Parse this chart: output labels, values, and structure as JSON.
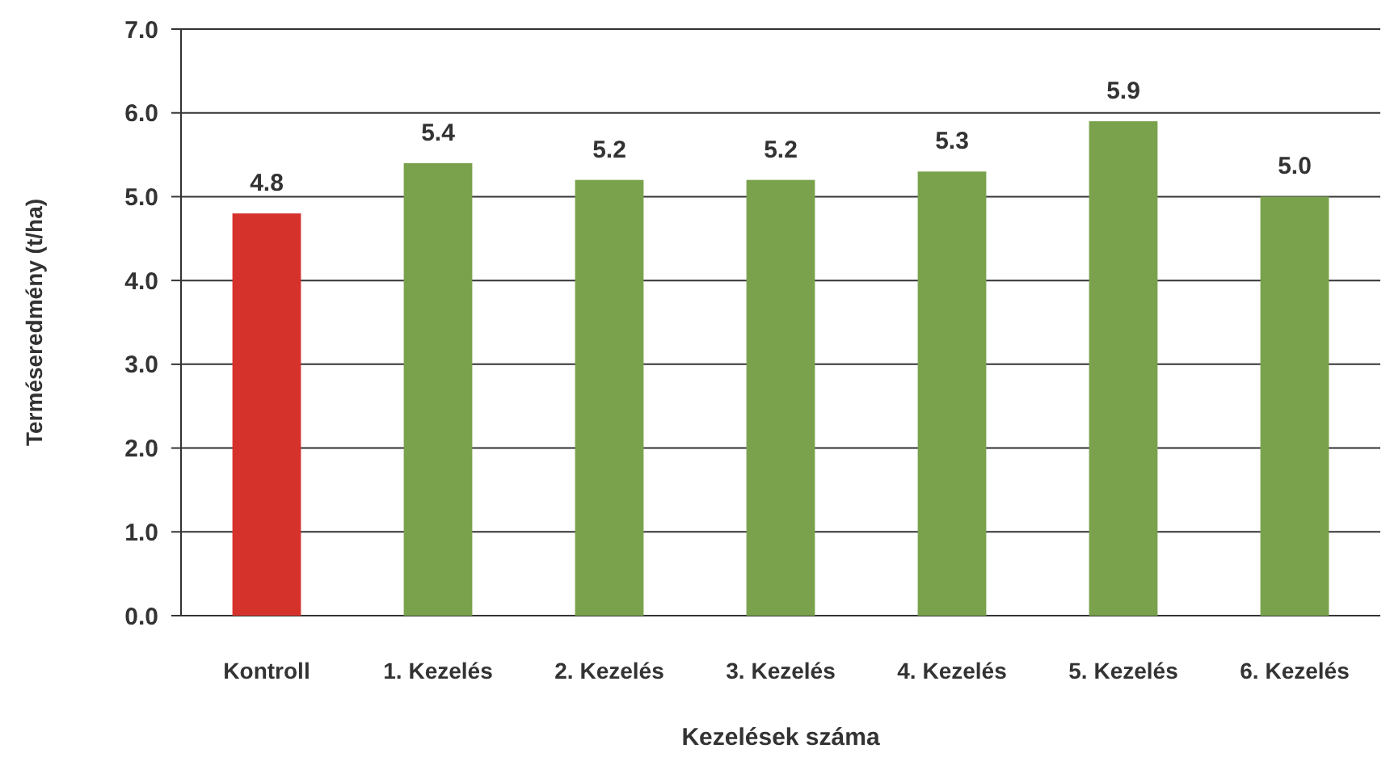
{
  "chart_data": {
    "type": "bar",
    "xlabel": "Kezelések száma",
    "ylabel": "Terméseredmény (t/ha)",
    "categories": [
      "Kontroll",
      "1. Kezelés",
      "2. Kezelés",
      "3. Kezelés",
      "4. Kezelés",
      "5. Kezelés",
      "6. Kezelés"
    ],
    "values": [
      4.8,
      5.4,
      5.2,
      5.2,
      5.3,
      5.9,
      5.0
    ],
    "colors": [
      "#d6322c",
      "#7aa24c",
      "#7aa24c",
      "#7aa24c",
      "#7aa24c",
      "#7aa24c",
      "#7aa24c"
    ],
    "ylim": [
      0,
      7
    ],
    "yticks": [
      {
        "value": 0,
        "label": "0.0"
      },
      {
        "value": 1,
        "label": "1.0"
      },
      {
        "value": 2,
        "label": "2.0"
      },
      {
        "value": 3,
        "label": "3.0"
      },
      {
        "value": 4,
        "label": "4.0"
      },
      {
        "value": 5,
        "label": "5.0"
      },
      {
        "value": 6,
        "label": "6.0"
      },
      {
        "value": 7,
        "label": "7.0"
      }
    ],
    "value_labels": [
      "4.8",
      "5.4",
      "5.2",
      "5.2",
      "5.3",
      "5.9",
      "5.0"
    ],
    "grid": "y"
  }
}
